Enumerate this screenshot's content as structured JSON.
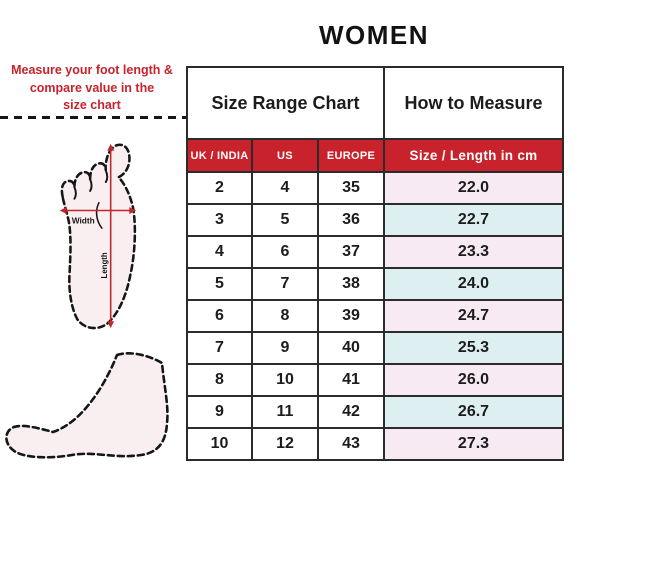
{
  "title": "WOMEN",
  "instruction": {
    "line1": "Measure your foot length &",
    "line2": "compare value in the",
    "line3": "size chart"
  },
  "diagram": {
    "width_label": "Width",
    "length_label": "Length"
  },
  "table": {
    "header": {
      "size_range": "Size Range Chart",
      "how_to_measure": "How to Measure"
    },
    "columns": [
      "UK / INDIA",
      "US",
      "EUROPE",
      "Size / Length in cm"
    ]
  },
  "colors": {
    "accent_red": "#C8232C",
    "row_pink": "#F8EAF2",
    "row_blue": "#DEEFF2",
    "border_dark": "#2B2B2B",
    "foot_fill": "#F9EFF1",
    "arrow_red": "#C0272D"
  },
  "chart_data": {
    "type": "table",
    "title": "WOMEN",
    "columns": [
      "UK / INDIA",
      "US",
      "EUROPE",
      "Size / Length in cm"
    ],
    "rows": [
      [
        "2",
        "4",
        "35",
        "22.0"
      ],
      [
        "3",
        "5",
        "36",
        "22.7"
      ],
      [
        "4",
        "6",
        "37",
        "23.3"
      ],
      [
        "5",
        "7",
        "38",
        "24.0"
      ],
      [
        "6",
        "8",
        "39",
        "24.7"
      ],
      [
        "7",
        "9",
        "40",
        "25.3"
      ],
      [
        "8",
        "10",
        "41",
        "26.0"
      ],
      [
        "9",
        "11",
        "42",
        "26.7"
      ],
      [
        "10",
        "12",
        "43",
        "27.3"
      ]
    ]
  }
}
